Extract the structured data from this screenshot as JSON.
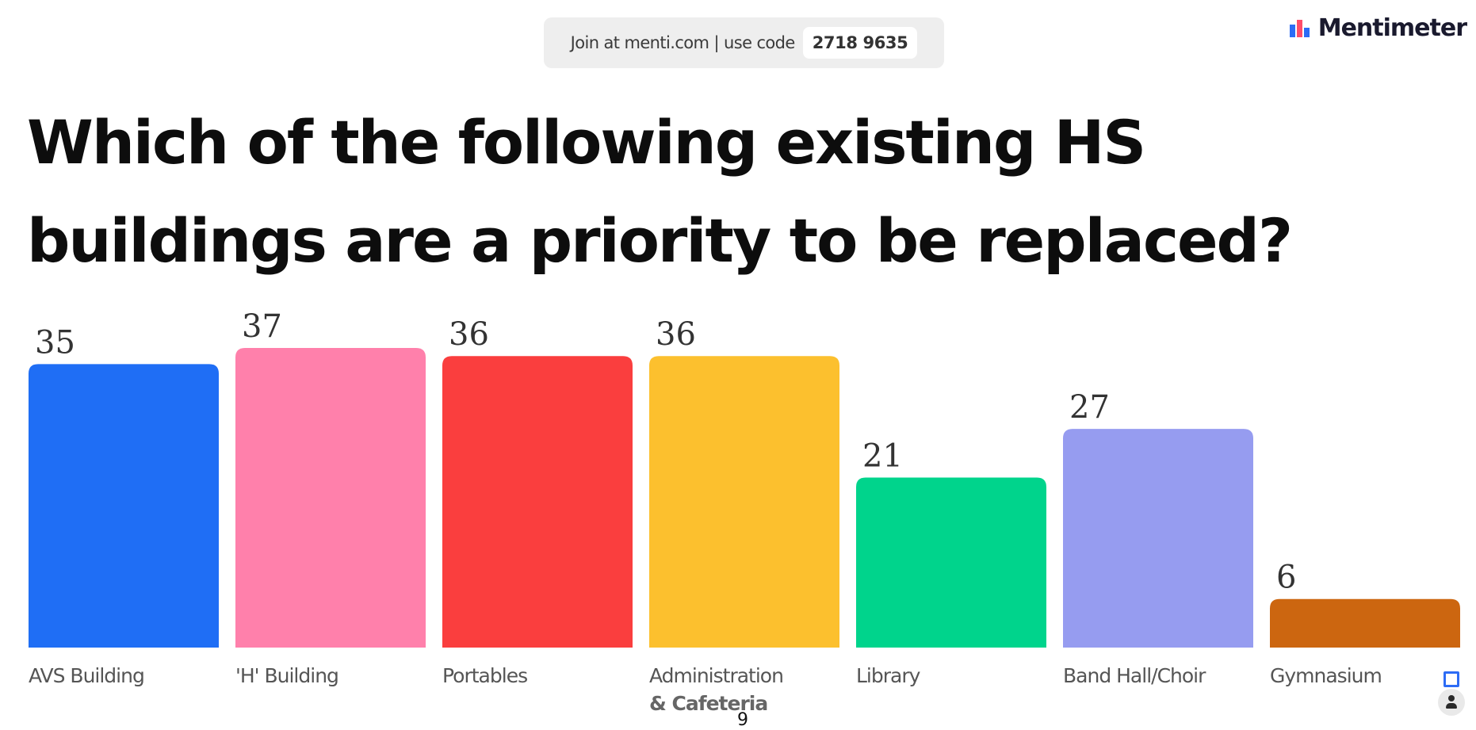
{
  "header": {
    "join_text": "Join at menti.com | use code",
    "code": "2718 9635",
    "brand": "Mentimeter",
    "brand_logo_icon": "mentimeter-logo-icon"
  },
  "chart_data": {
    "type": "bar",
    "title": "Which of the following existing HS buildings are a priority to be replaced?",
    "categories": [
      "AVS Building",
      "'H' Building",
      "Portables",
      "Administration & Cafeteria",
      "Library",
      "Band Hall/Choir",
      "Gymnasium"
    ],
    "category_lines": [
      [
        "AVS Building"
      ],
      [
        "'H' Building"
      ],
      [
        "Portables"
      ],
      [
        "Administration",
        "& Cafeteria"
      ],
      [
        "Library"
      ],
      [
        "Band Hall/Choir"
      ],
      [
        "Gymnasium"
      ]
    ],
    "values": [
      35,
      37,
      36,
      36,
      21,
      27,
      6
    ],
    "colors": [
      "#1f6ef5",
      "#ff80ab",
      "#fa3e3e",
      "#fcc02e",
      "#00d48c",
      "#969cf0",
      "#cc6610"
    ],
    "ylim": [
      0,
      37
    ],
    "grid": false,
    "legend": "none"
  },
  "footer": {
    "page_number": "9",
    "corner_icons": [
      "comment-square-icon",
      "participant-user-icon"
    ]
  }
}
